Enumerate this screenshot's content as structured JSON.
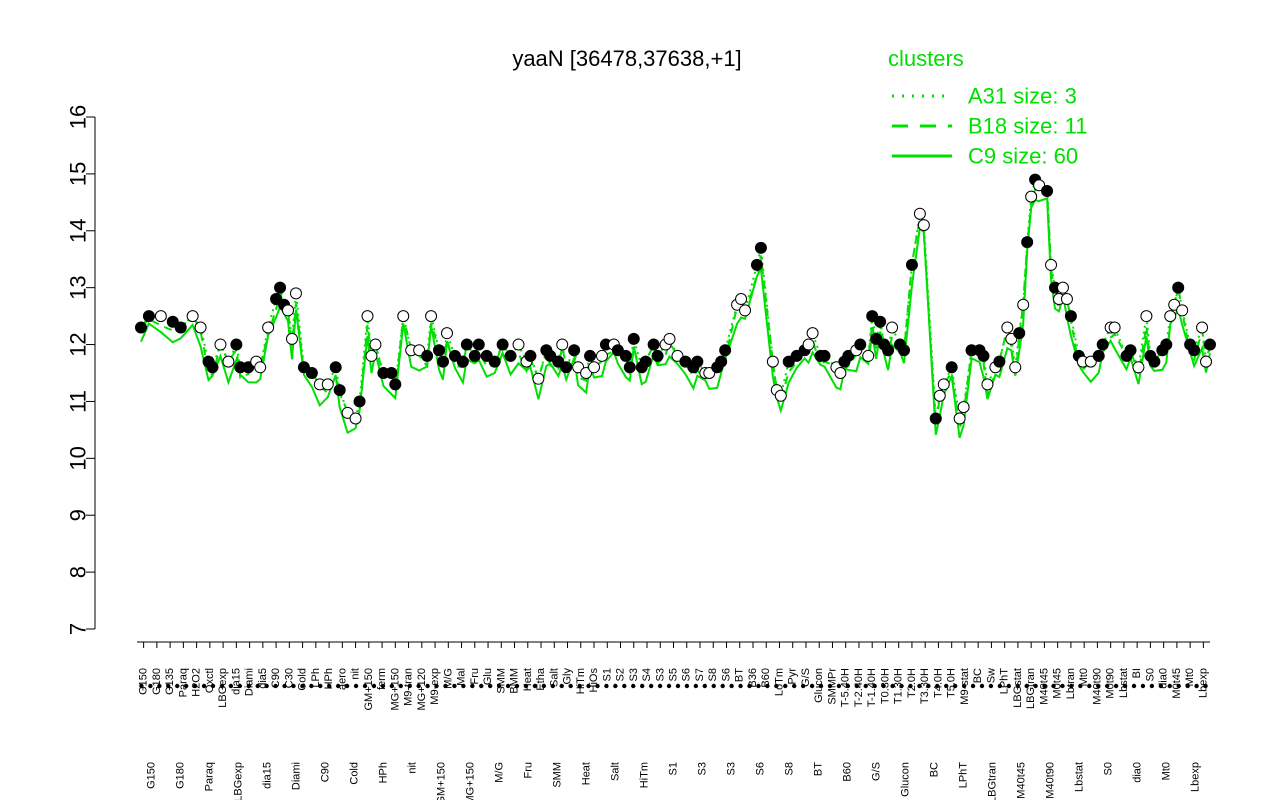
{
  "chart_data": {
    "type": "line",
    "title": "yaaN [36478,37638,+1]",
    "xlabel": "",
    "ylabel": "",
    "ylim": [
      7,
      16
    ],
    "yticks": [
      "7",
      "8",
      "9",
      "10",
      "11",
      "12",
      "13",
      "14",
      "15",
      "16"
    ],
    "xticks_upper": [
      "G150",
      "G180",
      "G135",
      "Paraq",
      "H2O2",
      "Oxctl",
      "LBGexp",
      "dia15",
      "Diami",
      "dia5",
      "C90",
      "C30",
      "Cold",
      "LPh",
      "HPh",
      "aero",
      "nit",
      "GM+150",
      "ferm",
      "MG+150",
      "M9-tran",
      "MG+120",
      "M9-exp",
      "M/G",
      "Mal",
      "Fru",
      "Glu",
      "SMM",
      "BMM",
      "Heat",
      "Etha",
      "Salt",
      "Gly",
      "HiTm",
      "HiOs",
      "S1",
      "S2",
      "S3",
      "S4",
      "S3",
      "S5",
      "S6",
      "S7",
      "S8",
      "S6",
      "BT",
      "B36",
      "B60",
      "LoTm",
      "Pyr",
      "G/S",
      "Glucon",
      "SMMPr",
      "T-5.40H",
      "T-2.40H",
      "T-1.40H",
      "T0.30H",
      "T1.30H",
      "T2.0H",
      "T3.30H",
      "T4.0H",
      "T5.0H",
      "M9-stat",
      "BC",
      "Sw",
      "LPhT",
      "LBGstat",
      "LBGtran",
      "M40t45",
      "M0t45",
      "Lbtran",
      "Mt0",
      "M40t90",
      "M0t90",
      "Lbstat",
      "BI",
      "S0",
      "dia0",
      "M0t45",
      "Mt0",
      "Lbexp"
    ],
    "xticks_lower": [
      "G150",
      "G180",
      "Paraq",
      "LBGexp",
      "dia15",
      "Diami",
      "C90",
      "Cold",
      "HPh",
      "nit",
      "GM+150",
      "MG+150",
      "M/G",
      "Fru",
      "SMM",
      "Heat",
      "Salt",
      "HiTm",
      "S1",
      "S3",
      "S3",
      "S6",
      "S8",
      "BT",
      "B60",
      "G/S",
      "Glucon",
      "BC",
      "LPhT",
      "LBGtran",
      "M40t45",
      "M40t90",
      "Lbstat",
      "S0",
      "dia0",
      "Mt0",
      "Lbexp"
    ],
    "legend": {
      "title": "clusters",
      "placement": "top-right",
      "entries": [
        {
          "label": "A31 size: 3",
          "style": "dotted"
        },
        {
          "label": "B18 size: 11",
          "style": "dashed"
        },
        {
          "label": "C9 size: 60",
          "style": "solid"
        }
      ]
    },
    "colors": {
      "series": "#00e000",
      "legend_text": "#00e000",
      "points_open": "#ffffff",
      "points_filled": "#000000"
    },
    "grid": false,
    "series": [
      {
        "name": "",
        "x_index_max": 270,
        "points": [
          [
            1,
            12.3,
            1
          ],
          [
            3,
            12.5,
            1
          ],
          [
            6,
            12.5,
            0
          ],
          [
            9,
            12.4,
            1
          ],
          [
            11,
            12.3,
            1
          ],
          [
            14,
            12.5,
            0
          ],
          [
            16,
            12.3,
            0
          ],
          [
            18,
            11.7,
            1
          ],
          [
            19,
            11.6,
            1
          ],
          [
            21,
            12.0,
            0
          ],
          [
            23,
            11.7,
            0
          ],
          [
            25,
            12.0,
            1
          ],
          [
            26,
            11.6,
            1
          ],
          [
            28,
            11.6,
            1
          ],
          [
            30,
            11.7,
            0
          ],
          [
            31,
            11.6,
            0
          ],
          [
            33,
            12.3,
            0
          ],
          [
            35,
            12.8,
            1
          ],
          [
            36,
            13.0,
            1
          ],
          [
            37,
            12.7,
            1
          ],
          [
            38,
            12.6,
            0
          ],
          [
            39,
            12.1,
            0
          ],
          [
            40,
            12.9,
            0
          ],
          [
            42,
            11.6,
            1
          ],
          [
            44,
            11.5,
            1
          ],
          [
            46,
            11.3,
            0
          ],
          [
            48,
            11.3,
            0
          ],
          [
            50,
            11.6,
            1
          ],
          [
            51,
            11.2,
            1
          ],
          [
            53,
            10.8,
            0
          ],
          [
            55,
            10.7,
            0
          ],
          [
            56,
            11.0,
            1
          ],
          [
            58,
            12.5,
            0
          ],
          [
            59,
            11.8,
            0
          ],
          [
            60,
            12.0,
            0
          ],
          [
            62,
            11.5,
            1
          ],
          [
            64,
            11.5,
            1
          ],
          [
            65,
            11.3,
            1
          ],
          [
            67,
            12.5,
            0
          ],
          [
            69,
            11.9,
            0
          ],
          [
            71,
            11.9,
            0
          ],
          [
            73,
            11.8,
            1
          ],
          [
            74,
            12.5,
            0
          ],
          [
            76,
            11.9,
            1
          ],
          [
            77,
            11.7,
            1
          ],
          [
            78,
            12.2,
            0
          ],
          [
            80,
            11.8,
            1
          ],
          [
            82,
            11.7,
            1
          ],
          [
            83,
            12.0,
            1
          ],
          [
            85,
            11.8,
            1
          ],
          [
            86,
            12.0,
            1
          ],
          [
            88,
            11.8,
            1
          ],
          [
            90,
            11.7,
            1
          ],
          [
            92,
            12.0,
            1
          ],
          [
            94,
            11.8,
            1
          ],
          [
            96,
            12.0,
            0
          ],
          [
            98,
            11.7,
            0
          ],
          [
            99,
            11.8,
            1
          ],
          [
            101,
            11.4,
            0
          ],
          [
            103,
            11.9,
            1
          ],
          [
            104,
            11.8,
            1
          ],
          [
            106,
            11.7,
            1
          ],
          [
            107,
            12.0,
            0
          ],
          [
            108,
            11.6,
            1
          ],
          [
            110,
            11.9,
            1
          ],
          [
            111,
            11.6,
            0
          ],
          [
            113,
            11.5,
            0
          ],
          [
            114,
            11.8,
            1
          ],
          [
            115,
            11.6,
            0
          ],
          [
            117,
            11.8,
            0
          ],
          [
            118,
            12.0,
            1
          ],
          [
            120,
            12.0,
            0
          ],
          [
            121,
            11.9,
            1
          ],
          [
            123,
            11.8,
            1
          ],
          [
            124,
            11.6,
            1
          ],
          [
            125,
            12.1,
            1
          ],
          [
            127,
            11.6,
            1
          ],
          [
            128,
            11.7,
            1
          ],
          [
            130,
            12.0,
            1
          ],
          [
            131,
            11.8,
            1
          ],
          [
            133,
            12.0,
            0
          ],
          [
            134,
            12.1,
            0
          ],
          [
            136,
            11.8,
            0
          ],
          [
            138,
            11.7,
            1
          ],
          [
            140,
            11.6,
            1
          ],
          [
            141,
            11.7,
            1
          ],
          [
            143,
            11.5,
            0
          ],
          [
            144,
            11.5,
            0
          ],
          [
            146,
            11.6,
            1
          ],
          [
            147,
            11.7,
            1
          ],
          [
            148,
            11.9,
            1
          ],
          [
            151,
            12.7,
            0
          ],
          [
            152,
            12.8,
            0
          ],
          [
            153,
            12.6,
            0
          ],
          [
            156,
            13.4,
            1
          ],
          [
            157,
            13.7,
            1
          ],
          [
            160,
            11.7,
            0
          ],
          [
            161,
            11.2,
            0
          ],
          [
            162,
            11.1,
            0
          ],
          [
            164,
            11.7,
            1
          ],
          [
            166,
            11.8,
            1
          ],
          [
            168,
            11.9,
            1
          ],
          [
            169,
            12.0,
            0
          ],
          [
            170,
            12.2,
            0
          ],
          [
            172,
            11.8,
            1
          ],
          [
            173,
            11.8,
            1
          ],
          [
            176,
            11.6,
            0
          ],
          [
            177,
            11.5,
            0
          ],
          [
            178,
            11.7,
            1
          ],
          [
            179,
            11.8,
            1
          ],
          [
            181,
            11.9,
            0
          ],
          [
            182,
            12.0,
            1
          ],
          [
            184,
            11.8,
            0
          ],
          [
            185,
            12.5,
            1
          ],
          [
            186,
            12.1,
            1
          ],
          [
            187,
            12.4,
            1
          ],
          [
            188,
            12.0,
            1
          ],
          [
            189,
            11.9,
            1
          ],
          [
            190,
            12.3,
            0
          ],
          [
            192,
            12.0,
            1
          ],
          [
            193,
            11.9,
            1
          ],
          [
            195,
            13.4,
            1
          ],
          [
            197,
            14.3,
            0
          ],
          [
            198,
            14.1,
            0
          ],
          [
            201,
            10.7,
            1
          ],
          [
            202,
            11.1,
            0
          ],
          [
            203,
            11.3,
            0
          ],
          [
            205,
            11.6,
            1
          ],
          [
            207,
            10.7,
            0
          ],
          [
            208,
            10.9,
            0
          ],
          [
            210,
            11.9,
            1
          ],
          [
            212,
            11.9,
            1
          ],
          [
            213,
            11.8,
            1
          ],
          [
            214,
            11.3,
            0
          ],
          [
            216,
            11.6,
            0
          ],
          [
            217,
            11.7,
            1
          ],
          [
            219,
            12.3,
            0
          ],
          [
            220,
            12.1,
            0
          ],
          [
            221,
            11.6,
            0
          ],
          [
            222,
            12.2,
            1
          ],
          [
            223,
            12.7,
            0
          ],
          [
            224,
            13.8,
            1
          ],
          [
            225,
            14.6,
            0
          ],
          [
            226,
            14.9,
            1
          ],
          [
            227,
            14.8,
            0
          ],
          [
            229,
            14.7,
            1
          ],
          [
            230,
            13.4,
            0
          ],
          [
            231,
            13.0,
            1
          ],
          [
            232,
            12.8,
            0
          ],
          [
            233,
            13.0,
            0
          ],
          [
            234,
            12.8,
            0
          ],
          [
            235,
            12.5,
            1
          ],
          [
            237,
            11.8,
            1
          ],
          [
            238,
            11.7,
            0
          ],
          [
            240,
            11.7,
            0
          ],
          [
            242,
            11.8,
            1
          ],
          [
            243,
            12.0,
            1
          ],
          [
            245,
            12.3,
            0
          ],
          [
            246,
            12.3,
            0
          ],
          [
            249,
            11.8,
            1
          ],
          [
            250,
            11.9,
            1
          ],
          [
            252,
            11.6,
            0
          ],
          [
            254,
            12.5,
            0
          ],
          [
            255,
            11.8,
            1
          ],
          [
            256,
            11.7,
            1
          ],
          [
            258,
            11.9,
            1
          ],
          [
            259,
            12.0,
            1
          ],
          [
            260,
            12.5,
            0
          ],
          [
            261,
            12.7,
            0
          ],
          [
            262,
            13.0,
            1
          ],
          [
            263,
            12.6,
            0
          ],
          [
            265,
            12.0,
            1
          ],
          [
            266,
            11.9,
            1
          ],
          [
            268,
            12.3,
            0
          ],
          [
            269,
            11.7,
            0
          ],
          [
            270,
            12.0,
            1
          ]
        ]
      }
    ]
  }
}
